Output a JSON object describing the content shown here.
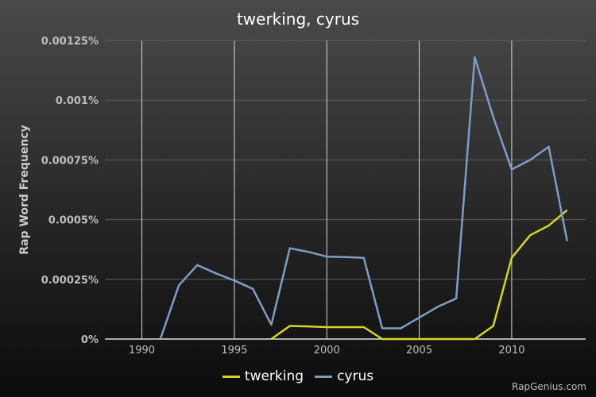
{
  "chart_data": {
    "type": "line",
    "title": "twerking, cyrus",
    "ylabel": "Rap Word Frequency",
    "xlabel": "",
    "xlim": [
      1988,
      2014
    ],
    "ylim": [
      0,
      0.00125
    ],
    "x_ticks": [
      1990,
      1995,
      2000,
      2005,
      2010
    ],
    "x_tick_labels": [
      "1990",
      "1995",
      "2000",
      "2005",
      "2010"
    ],
    "y_ticks": [
      0,
      0.00025,
      0.0005,
      0.00075,
      0.001,
      0.00125
    ],
    "y_tick_labels": [
      "0%",
      "0.00025%",
      "0.0005%",
      "0.00075%",
      "0.001%",
      "0.00125%"
    ],
    "grid": "vertical",
    "legend": "bottom",
    "series": [
      {
        "name": "twerking",
        "color": "#d4d42a",
        "points": [
          [
            1997,
            0
          ],
          [
            1998,
            5.5e-05
          ],
          [
            1999,
            5.3e-05
          ],
          [
            2000,
            5e-05
          ],
          [
            2001,
            5e-05
          ],
          [
            2002,
            5e-05
          ],
          [
            2003,
            0
          ],
          [
            2008,
            0
          ],
          [
            2009,
            5.5e-05
          ],
          [
            2010,
            0.00034
          ],
          [
            2011,
            0.000435
          ],
          [
            2012,
            0.000475
          ],
          [
            2013,
            0.00054
          ]
        ]
      },
      {
        "name": "cyrus",
        "color": "#7f9cc6",
        "points": [
          [
            1991,
            0
          ],
          [
            1992,
            0.000225
          ],
          [
            1993,
            0.00031
          ],
          [
            1994,
            0.000275
          ],
          [
            1995,
            0.000245
          ],
          [
            1996,
            0.00021
          ],
          [
            1997,
            6e-05
          ],
          [
            1998,
            0.00038
          ],
          [
            1999,
            0.000365
          ],
          [
            2000,
            0.000345
          ],
          [
            2001,
            0.000343
          ],
          [
            2002,
            0.00034
          ],
          [
            2003,
            4.5e-05
          ],
          [
            2004,
            4.5e-05
          ],
          [
            2005,
            9e-05
          ],
          [
            2006,
            0.000135
          ],
          [
            2007,
            0.00017
          ],
          [
            2008,
            0.00118
          ],
          [
            2009,
            0.00093
          ],
          [
            2010,
            0.00071
          ],
          [
            2011,
            0.00075
          ],
          [
            2012,
            0.000805
          ],
          [
            2013,
            0.00041
          ]
        ]
      }
    ]
  },
  "watermark": "RapGenius.com"
}
